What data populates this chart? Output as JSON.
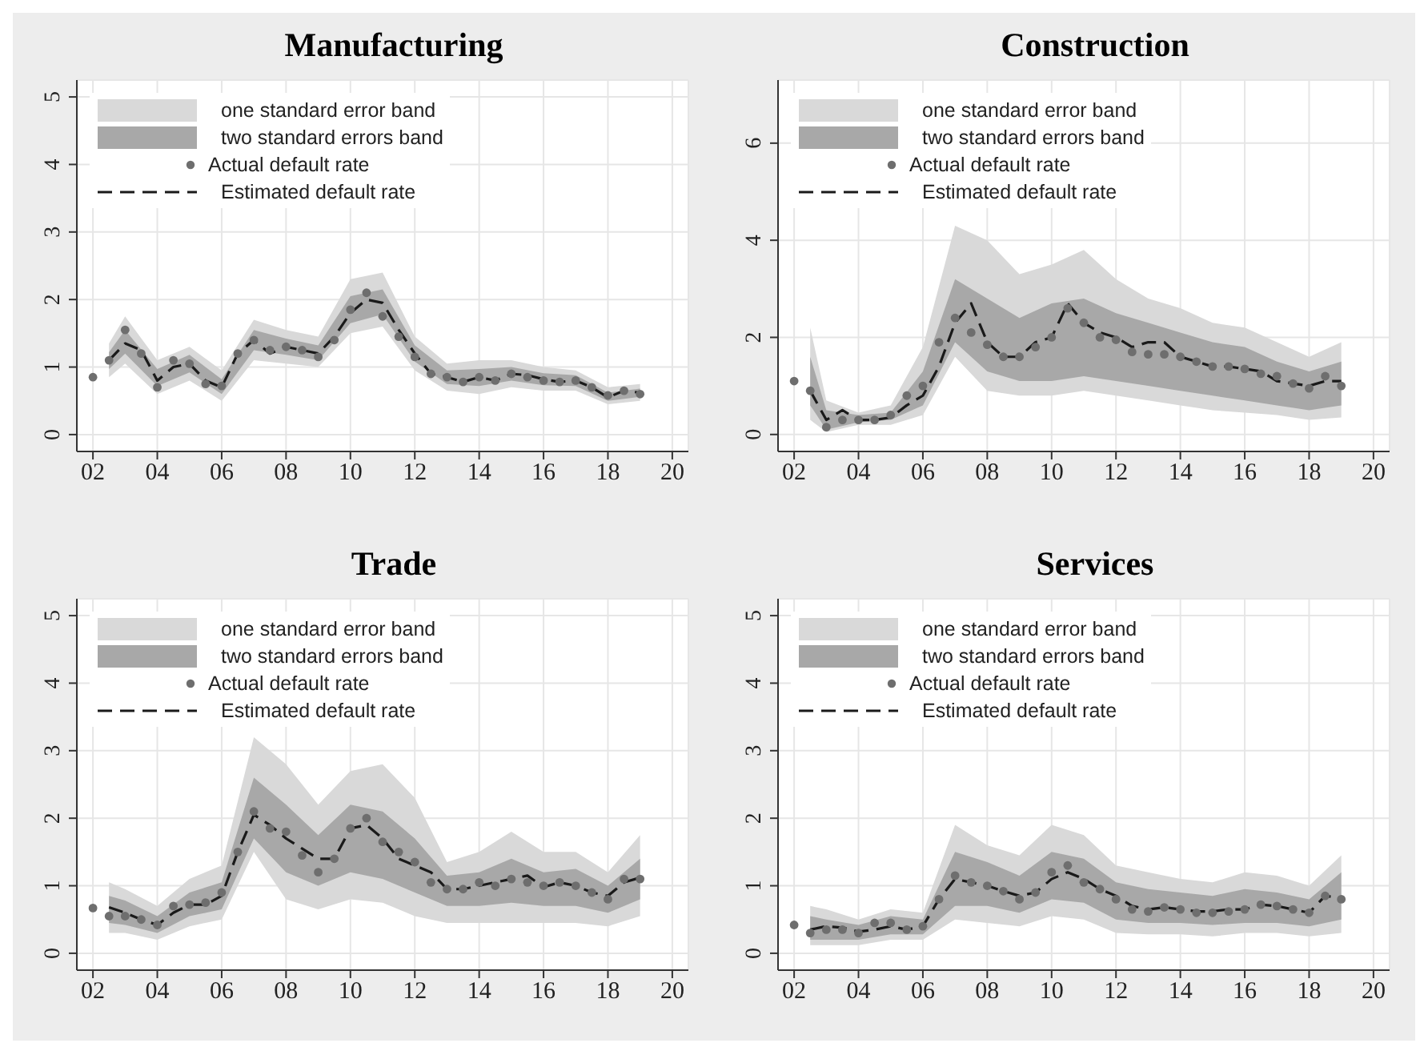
{
  "chart_data": [
    {
      "type": "line",
      "title": "Manufacturing",
      "xlim": [
        2001.5,
        2020.5
      ],
      "xticks": [
        {
          "value": 2002,
          "label": "02"
        },
        {
          "value": 2004,
          "label": "04"
        },
        {
          "value": 2006,
          "label": "06"
        },
        {
          "value": 2008,
          "label": "08"
        },
        {
          "value": 2010,
          "label": "10"
        },
        {
          "value": 2012,
          "label": "12"
        },
        {
          "value": 2014,
          "label": "14"
        },
        {
          "value": 2016,
          "label": "16"
        },
        {
          "value": 2018,
          "label": "18"
        },
        {
          "value": 2020,
          "label": "20"
        }
      ],
      "ylim": [
        -0.25,
        5.25
      ],
      "yticks": [
        0,
        1,
        2,
        3,
        4,
        5
      ],
      "grid": true,
      "legend": "top left",
      "x": [
        2002,
        2002.5,
        2003,
        2003.5,
        2004,
        2004.5,
        2005,
        2005.5,
        2006,
        2006.5,
        2007,
        2007.5,
        2008,
        2008.5,
        2009,
        2009.5,
        2010,
        2010.5,
        2011,
        2011.5,
        2012,
        2012.5,
        2013,
        2013.5,
        2014,
        2014.5,
        2015,
        2015.5,
        2016,
        2016.5,
        2017,
        2017.5,
        2018,
        2018.5,
        2019
      ],
      "series": [
        {
          "name": "one standard error band",
          "type": "area",
          "color": "#d9d9d9",
          "x": [
            2002.5,
            2003,
            2004,
            2005,
            2006,
            2007,
            2008,
            2009,
            2010,
            2011,
            2012,
            2013,
            2014,
            2015,
            2016,
            2017,
            2018,
            2019
          ],
          "values": [
            null,
            null,
            null,
            null,
            null,
            null,
            null,
            null,
            null,
            null,
            null,
            null,
            null,
            null,
            null,
            null,
            null,
            null
          ],
          "lower": [
            0.85,
            1.05,
            0.6,
            0.8,
            0.5,
            1.1,
            1.05,
            1.0,
            1.5,
            1.6,
            0.95,
            0.65,
            0.6,
            0.7,
            0.65,
            0.65,
            0.45,
            0.5
          ],
          "upper": [
            1.35,
            1.75,
            1.1,
            1.3,
            0.95,
            1.7,
            1.55,
            1.45,
            2.3,
            2.4,
            1.45,
            1.05,
            1.1,
            1.1,
            1.0,
            0.95,
            0.7,
            0.75
          ]
        },
        {
          "name": "two standard errors band",
          "type": "area",
          "color": "#a8a8a8",
          "x": [
            2002.5,
            2003,
            2004,
            2005,
            2006,
            2007,
            2008,
            2009,
            2010,
            2011,
            2012,
            2013,
            2014,
            2015,
            2016,
            2017,
            2018,
            2019
          ],
          "values": [
            null,
            null,
            null,
            null,
            null,
            null,
            null,
            null,
            null,
            null,
            null,
            null,
            null,
            null,
            null,
            null,
            null,
            null
          ],
          "lower": [
            0.97,
            1.2,
            0.72,
            0.92,
            0.6,
            1.25,
            1.18,
            1.1,
            1.65,
            1.78,
            1.08,
            0.75,
            0.72,
            0.8,
            0.73,
            0.72,
            0.5,
            0.56
          ],
          "upper": [
            1.22,
            1.55,
            0.97,
            1.18,
            0.82,
            1.55,
            1.42,
            1.32,
            2.05,
            2.15,
            1.32,
            0.95,
            0.97,
            1.0,
            0.91,
            0.88,
            0.62,
            0.68
          ]
        },
        {
          "name": "Actual default rate",
          "type": "scatter",
          "color": "#6e6e6e",
          "marker": "circle",
          "values": [
            0.85,
            1.1,
            1.55,
            1.2,
            0.7,
            1.1,
            1.05,
            0.75,
            0.72,
            1.2,
            1.4,
            1.25,
            1.3,
            1.25,
            1.15,
            1.4,
            1.85,
            2.1,
            1.75,
            1.45,
            1.15,
            0.9,
            0.85,
            0.78,
            0.85,
            0.8,
            0.9,
            0.85,
            0.8,
            0.78,
            0.8,
            0.7,
            0.58,
            0.65,
            0.6
          ]
        },
        {
          "name": "Estimated default rate",
          "type": "line",
          "color": "#1a1a1a",
          "line_style": "dashed",
          "values": [
            null,
            1.1,
            1.35,
            1.25,
            0.8,
            1.0,
            1.05,
            0.8,
            0.7,
            1.2,
            1.4,
            1.2,
            1.3,
            1.25,
            1.2,
            1.45,
            1.8,
            2.0,
            1.95,
            1.55,
            1.2,
            0.9,
            0.85,
            0.78,
            0.85,
            0.8,
            0.9,
            0.88,
            0.82,
            0.78,
            0.8,
            0.7,
            0.55,
            0.65,
            0.62
          ]
        }
      ]
    },
    {
      "type": "line",
      "title": "Construction",
      "xlim": [
        2001.5,
        2020.5
      ],
      "xticks": [
        {
          "value": 2002,
          "label": "02"
        },
        {
          "value": 2004,
          "label": "04"
        },
        {
          "value": 2006,
          "label": "06"
        },
        {
          "value": 2008,
          "label": "08"
        },
        {
          "value": 2010,
          "label": "10"
        },
        {
          "value": 2012,
          "label": "12"
        },
        {
          "value": 2014,
          "label": "14"
        },
        {
          "value": 2016,
          "label": "16"
        },
        {
          "value": 2018,
          "label": "18"
        },
        {
          "value": 2020,
          "label": "20"
        }
      ],
      "ylim": [
        -0.35,
        7.3
      ],
      "yticks": [
        0,
        2,
        4,
        6
      ],
      "grid": true,
      "legend": "top left",
      "x": [
        2002,
        2002.5,
        2003,
        2003.5,
        2004,
        2004.5,
        2005,
        2005.5,
        2006,
        2006.5,
        2007,
        2007.5,
        2008,
        2008.5,
        2009,
        2009.5,
        2010,
        2010.5,
        2011,
        2011.5,
        2012,
        2012.5,
        2013,
        2013.5,
        2014,
        2014.5,
        2015,
        2015.5,
        2016,
        2016.5,
        2017,
        2017.5,
        2018,
        2018.5,
        2019
      ],
      "series": [
        {
          "name": "one standard error band",
          "type": "area",
          "color": "#d9d9d9",
          "x": [
            2002.5,
            2003,
            2004,
            2005,
            2006,
            2007,
            2008,
            2009,
            2010,
            2011,
            2012,
            2013,
            2014,
            2015,
            2016,
            2017,
            2018,
            2019
          ],
          "values": [
            null,
            null,
            null,
            null,
            null,
            null,
            null,
            null,
            null,
            null,
            null,
            null,
            null,
            null,
            null,
            null,
            null,
            null
          ],
          "lower": [
            0.3,
            0.05,
            0.2,
            0.2,
            0.4,
            1.6,
            0.9,
            0.8,
            0.8,
            0.9,
            0.8,
            0.7,
            0.6,
            0.5,
            0.45,
            0.4,
            0.3,
            0.35
          ],
          "upper": [
            2.2,
            0.7,
            0.45,
            0.6,
            1.8,
            4.3,
            4.0,
            3.3,
            3.5,
            3.8,
            3.2,
            2.8,
            2.6,
            2.3,
            2.2,
            1.9,
            1.6,
            1.9
          ]
        },
        {
          "name": "two standard errors band",
          "type": "area",
          "color": "#a8a8a8",
          "x": [
            2002.5,
            2003,
            2004,
            2005,
            2006,
            2007,
            2008,
            2009,
            2010,
            2011,
            2012,
            2013,
            2014,
            2015,
            2016,
            2017,
            2018,
            2019
          ],
          "values": [
            null,
            null,
            null,
            null,
            null,
            null,
            null,
            null,
            null,
            null,
            null,
            null,
            null,
            null,
            null,
            null,
            null,
            null
          ],
          "lower": [
            0.6,
            0.1,
            0.25,
            0.3,
            0.6,
            1.9,
            1.3,
            1.1,
            1.1,
            1.2,
            1.1,
            1.0,
            0.9,
            0.8,
            0.7,
            0.6,
            0.5,
            0.6
          ],
          "upper": [
            1.6,
            0.5,
            0.4,
            0.45,
            1.3,
            3.2,
            2.8,
            2.4,
            2.7,
            2.8,
            2.5,
            2.3,
            2.1,
            1.9,
            1.8,
            1.5,
            1.3,
            1.5
          ]
        },
        {
          "name": "Actual default rate",
          "type": "scatter",
          "color": "#6e6e6e",
          "marker": "circle",
          "values": [
            1.1,
            0.9,
            0.15,
            0.3,
            0.3,
            0.3,
            0.4,
            0.8,
            1.0,
            1.9,
            2.4,
            2.1,
            1.85,
            1.6,
            1.6,
            1.8,
            2.0,
            2.6,
            2.3,
            2.0,
            1.95,
            1.7,
            1.65,
            1.65,
            1.6,
            1.5,
            1.4,
            1.4,
            1.35,
            1.25,
            1.2,
            1.05,
            0.95,
            1.2,
            1.0
          ]
        },
        {
          "name": "Estimated default rate",
          "type": "line",
          "color": "#1a1a1a",
          "line_style": "dashed",
          "values": [
            null,
            0.9,
            0.3,
            0.5,
            0.3,
            0.3,
            0.35,
            0.6,
            0.8,
            1.4,
            2.3,
            2.7,
            1.9,
            1.6,
            1.6,
            1.9,
            2.0,
            2.7,
            2.3,
            2.1,
            2.0,
            1.8,
            1.9,
            1.9,
            1.6,
            1.5,
            1.4,
            1.4,
            1.35,
            1.3,
            1.1,
            1.05,
            1.0,
            1.1,
            1.1
          ]
        }
      ]
    },
    {
      "type": "line",
      "title": "Trade",
      "xlim": [
        2001.5,
        2020.5
      ],
      "xticks": [
        {
          "value": 2002,
          "label": "02"
        },
        {
          "value": 2004,
          "label": "04"
        },
        {
          "value": 2006,
          "label": "06"
        },
        {
          "value": 2008,
          "label": "08"
        },
        {
          "value": 2010,
          "label": "10"
        },
        {
          "value": 2012,
          "label": "12"
        },
        {
          "value": 2014,
          "label": "14"
        },
        {
          "value": 2016,
          "label": "16"
        },
        {
          "value": 2018,
          "label": "18"
        },
        {
          "value": 2020,
          "label": "20"
        }
      ],
      "ylim": [
        -0.25,
        5.25
      ],
      "yticks": [
        0,
        1,
        2,
        3,
        4,
        5
      ],
      "grid": true,
      "legend": "top left",
      "x": [
        2002,
        2002.5,
        2003,
        2003.5,
        2004,
        2004.5,
        2005,
        2005.5,
        2006,
        2006.5,
        2007,
        2007.5,
        2008,
        2008.5,
        2009,
        2009.5,
        2010,
        2010.5,
        2011,
        2011.5,
        2012,
        2012.5,
        2013,
        2013.5,
        2014,
        2014.5,
        2015,
        2015.5,
        2016,
        2016.5,
        2017,
        2017.5,
        2018,
        2018.5,
        2019
      ],
      "series": [
        {
          "name": "one standard error band",
          "type": "area",
          "color": "#d9d9d9",
          "x": [
            2002.5,
            2003,
            2004,
            2005,
            2006,
            2007,
            2008,
            2009,
            2010,
            2011,
            2012,
            2013,
            2014,
            2015,
            2016,
            2017,
            2018,
            2019
          ],
          "values": [
            null,
            null,
            null,
            null,
            null,
            null,
            null,
            null,
            null,
            null,
            null,
            null,
            null,
            null,
            null,
            null,
            null,
            null
          ],
          "lower": [
            0.3,
            0.3,
            0.2,
            0.4,
            0.5,
            1.5,
            0.8,
            0.65,
            0.8,
            0.75,
            0.55,
            0.45,
            0.45,
            0.45,
            0.45,
            0.45,
            0.4,
            0.55
          ],
          "upper": [
            1.05,
            0.95,
            0.7,
            1.1,
            1.3,
            3.2,
            2.8,
            2.2,
            2.7,
            2.8,
            2.3,
            1.35,
            1.5,
            1.8,
            1.5,
            1.5,
            1.2,
            1.75
          ]
        },
        {
          "name": "two standard errors band",
          "type": "area",
          "color": "#a8a8a8",
          "x": [
            2002.5,
            2003,
            2004,
            2005,
            2006,
            2007,
            2008,
            2009,
            2010,
            2011,
            2012,
            2013,
            2014,
            2015,
            2016,
            2017,
            2018,
            2019
          ],
          "values": [
            null,
            null,
            null,
            null,
            null,
            null,
            null,
            null,
            null,
            null,
            null,
            null,
            null,
            null,
            null,
            null,
            null,
            null
          ],
          "lower": [
            0.45,
            0.42,
            0.3,
            0.55,
            0.65,
            1.7,
            1.2,
            1.0,
            1.2,
            1.1,
            0.9,
            0.7,
            0.7,
            0.75,
            0.7,
            0.7,
            0.6,
            0.8
          ],
          "upper": [
            0.85,
            0.78,
            0.55,
            0.9,
            1.05,
            2.6,
            2.2,
            1.75,
            2.2,
            2.1,
            1.7,
            1.15,
            1.2,
            1.4,
            1.2,
            1.25,
            1.0,
            1.4
          ]
        },
        {
          "name": "Actual default rate",
          "type": "scatter",
          "color": "#6e6e6e",
          "marker": "circle",
          "values": [
            0.67,
            0.55,
            0.55,
            0.5,
            0.42,
            0.7,
            0.72,
            0.75,
            0.9,
            1.5,
            2.1,
            1.85,
            1.8,
            1.45,
            1.2,
            1.4,
            1.85,
            2.0,
            1.65,
            1.5,
            1.35,
            1.05,
            0.95,
            0.95,
            1.05,
            1.0,
            1.1,
            1.05,
            1.0,
            1.05,
            1.0,
            0.9,
            0.8,
            1.1,
            1.1
          ]
        },
        {
          "name": "Estimated default rate",
          "type": "line",
          "color": "#1a1a1a",
          "line_style": "dashed",
          "values": [
            null,
            0.68,
            0.6,
            0.5,
            0.42,
            0.6,
            0.72,
            0.72,
            0.85,
            1.5,
            2.05,
            1.9,
            1.7,
            1.55,
            1.4,
            1.4,
            1.85,
            1.9,
            1.7,
            1.4,
            1.3,
            1.2,
            0.95,
            0.95,
            1.0,
            1.05,
            1.1,
            1.15,
            0.98,
            1.05,
            1.0,
            0.9,
            0.85,
            1.05,
            1.12
          ]
        }
      ]
    },
    {
      "type": "line",
      "title": "Services",
      "xlim": [
        2001.5,
        2020.5
      ],
      "xticks": [
        {
          "value": 2002,
          "label": "02"
        },
        {
          "value": 2004,
          "label": "04"
        },
        {
          "value": 2006,
          "label": "06"
        },
        {
          "value": 2008,
          "label": "08"
        },
        {
          "value": 2010,
          "label": "10"
        },
        {
          "value": 2012,
          "label": "12"
        },
        {
          "value": 2014,
          "label": "14"
        },
        {
          "value": 2016,
          "label": "16"
        },
        {
          "value": 2018,
          "label": "18"
        },
        {
          "value": 2020,
          "label": "20"
        }
      ],
      "ylim": [
        -0.25,
        5.25
      ],
      "yticks": [
        0,
        1,
        2,
        3,
        4,
        5
      ],
      "grid": true,
      "legend": "top left",
      "x": [
        2002,
        2002.5,
        2003,
        2003.5,
        2004,
        2004.5,
        2005,
        2005.5,
        2006,
        2006.5,
        2007,
        2007.5,
        2008,
        2008.5,
        2009,
        2009.5,
        2010,
        2010.5,
        2011,
        2011.5,
        2012,
        2012.5,
        2013,
        2013.5,
        2014,
        2014.5,
        2015,
        2015.5,
        2016,
        2016.5,
        2017,
        2017.5,
        2018,
        2018.5,
        2019
      ],
      "series": [
        {
          "name": "one standard error band",
          "type": "area",
          "color": "#d9d9d9",
          "x": [
            2002.5,
            2003,
            2004,
            2005,
            2006,
            2007,
            2008,
            2009,
            2010,
            2011,
            2012,
            2013,
            2014,
            2015,
            2016,
            2017,
            2018,
            2019
          ],
          "values": [
            null,
            null,
            null,
            null,
            null,
            null,
            null,
            null,
            null,
            null,
            null,
            null,
            null,
            null,
            null,
            null,
            null,
            null
          ],
          "lower": [
            0.12,
            0.12,
            0.12,
            0.2,
            0.2,
            0.5,
            0.45,
            0.4,
            0.55,
            0.5,
            0.3,
            0.28,
            0.28,
            0.25,
            0.3,
            0.3,
            0.25,
            0.3
          ],
          "upper": [
            0.7,
            0.65,
            0.5,
            0.65,
            0.6,
            1.9,
            1.6,
            1.45,
            1.9,
            1.75,
            1.3,
            1.2,
            1.1,
            1.05,
            1.2,
            1.15,
            1.0,
            1.45
          ]
        },
        {
          "name": "two standard errors band",
          "type": "area",
          "color": "#a8a8a8",
          "x": [
            2002.5,
            2003,
            2004,
            2005,
            2006,
            2007,
            2008,
            2009,
            2010,
            2011,
            2012,
            2013,
            2014,
            2015,
            2016,
            2017,
            2018,
            2019
          ],
          "values": [
            null,
            null,
            null,
            null,
            null,
            null,
            null,
            null,
            null,
            null,
            null,
            null,
            null,
            null,
            null,
            null,
            null,
            null
          ],
          "lower": [
            0.2,
            0.2,
            0.2,
            0.28,
            0.28,
            0.7,
            0.7,
            0.6,
            0.8,
            0.75,
            0.5,
            0.45,
            0.45,
            0.42,
            0.45,
            0.45,
            0.4,
            0.5
          ],
          "upper": [
            0.55,
            0.5,
            0.42,
            0.55,
            0.5,
            1.5,
            1.35,
            1.15,
            1.5,
            1.4,
            1.05,
            0.95,
            0.9,
            0.85,
            0.95,
            0.9,
            0.8,
            1.2
          ]
        },
        {
          "name": "Actual default rate",
          "type": "scatter",
          "color": "#6e6e6e",
          "marker": "circle",
          "values": [
            0.42,
            0.3,
            0.35,
            0.35,
            0.3,
            0.45,
            0.45,
            0.35,
            0.4,
            0.8,
            1.15,
            1.05,
            1.0,
            0.92,
            0.8,
            0.9,
            1.2,
            1.3,
            1.05,
            0.95,
            0.8,
            0.65,
            0.62,
            0.68,
            0.65,
            0.6,
            0.6,
            0.62,
            0.65,
            0.72,
            0.7,
            0.65,
            0.6,
            0.85,
            0.8
          ]
        },
        {
          "name": "Estimated default rate",
          "type": "line",
          "color": "#1a1a1a",
          "line_style": "dashed",
          "values": [
            null,
            0.35,
            0.4,
            0.38,
            0.32,
            0.35,
            0.4,
            0.35,
            0.4,
            0.8,
            1.1,
            1.05,
            1.0,
            0.92,
            0.85,
            0.9,
            1.1,
            1.2,
            1.1,
            0.95,
            0.85,
            0.7,
            0.65,
            0.68,
            0.65,
            0.62,
            0.62,
            0.65,
            0.65,
            0.72,
            0.7,
            0.65,
            0.6,
            0.85,
            0.82
          ]
        }
      ]
    }
  ]
}
